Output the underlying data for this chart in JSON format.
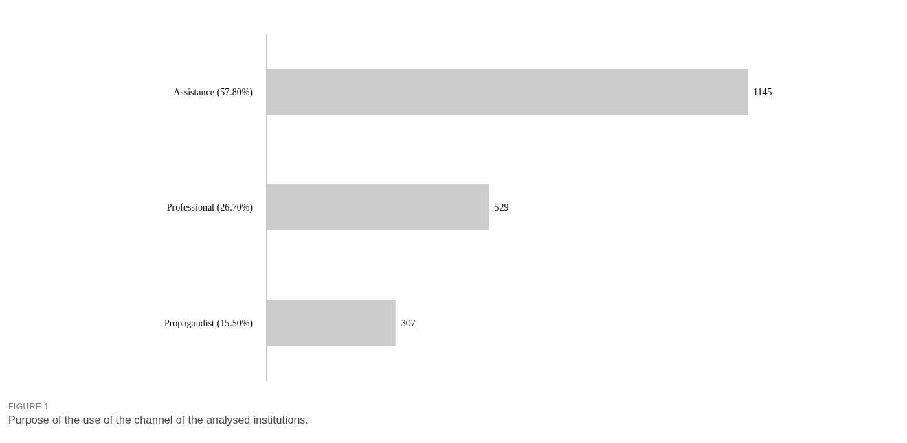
{
  "chart_data": {
    "type": "bar",
    "orientation": "horizontal",
    "categories": [
      "Assistance (57.80%)",
      "Professional (26.70%)",
      "Propagandist (15.50%)"
    ],
    "values": [
      1145,
      529,
      307
    ],
    "color": "#cccccc",
    "data_labels": true,
    "grid": false,
    "annotations": [
      "FIGURE 1",
      "Purpose of the use of the channel of the analysed institutions."
    ]
  }
}
